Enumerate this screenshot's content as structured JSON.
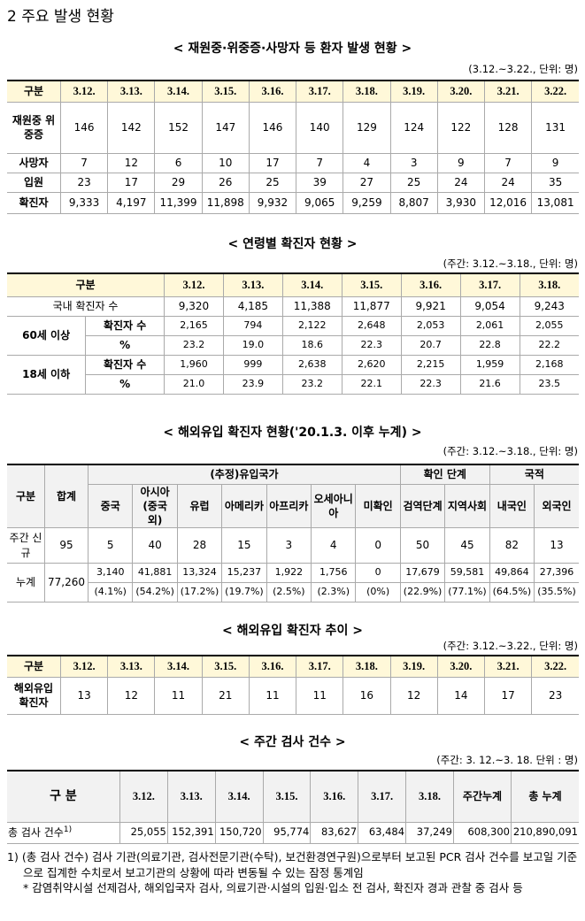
{
  "heading": "2  주요 발생 현황",
  "patient_status": {
    "title": "< 재원중·위중증·사망자 등 환자 발생 현황   >",
    "note": "(3.12.~3.22., 단위: 명)",
    "header": [
      "구분",
      "3.12.",
      "3.13.",
      "3.14.",
      "3.15.",
      "3.16.",
      "3.17.",
      "3.18.",
      "3.19.",
      "3.20.",
      "3.21.",
      "3.22."
    ],
    "rows": [
      [
        "재원중 위중증",
        "146",
        "142",
        "152",
        "147",
        "146",
        "140",
        "129",
        "124",
        "122",
        "128",
        "131"
      ],
      [
        "사망자",
        "7",
        "12",
        "6",
        "10",
        "17",
        "7",
        "4",
        "3",
        "9",
        "7",
        "9"
      ],
      [
        "입원",
        "23",
        "17",
        "29",
        "26",
        "25",
        "39",
        "27",
        "25",
        "24",
        "24",
        "35"
      ],
      [
        "확진자",
        "9,333",
        "4,197",
        "11,399",
        "11,898",
        "9,932",
        "9,065",
        "9,259",
        "8,807",
        "3,930",
        "12,016",
        "13,081"
      ]
    ]
  },
  "age_cases": {
    "title": "< 연령별 확진자 현황 >",
    "note": "(주간: 3.12.~3.18., 단위: 명)",
    "header": [
      "구분",
      "3.12.",
      "3.13.",
      "3.14.",
      "3.15.",
      "3.16.",
      "3.17.",
      "3.18."
    ],
    "total": {
      "label": "국내 확진자 수",
      "values": [
        "9,320",
        "4,185",
        "11,388",
        "11,877",
        "9,921",
        "9,054",
        "9,243"
      ]
    },
    "groups": [
      {
        "label": "60세 이상",
        "rows": [
          {
            "label": "확진자 수",
            "values": [
              "2,165",
              "794",
              "2,122",
              "2,648",
              "2,053",
              "2,061",
              "2,055"
            ]
          },
          {
            "label": "%",
            "values": [
              "23.2",
              "19.0",
              "18.6",
              "22.3",
              "20.7",
              "22.8",
              "22.2"
            ]
          }
        ]
      },
      {
        "label": "18세 이하",
        "rows": [
          {
            "label": "확진자 수",
            "values": [
              "1,960",
              "999",
              "2,638",
              "2,620",
              "2,215",
              "1,959",
              "2,168"
            ]
          },
          {
            "label": "%",
            "values": [
              "21.0",
              "23.9",
              "23.2",
              "22.1",
              "22.3",
              "21.6",
              "23.5"
            ]
          }
        ]
      }
    ]
  },
  "imported_cases": {
    "title": "< 해외유입 확진자 현황('20.1.3. 이후 누계) >",
    "note": "(주간: 3.12.~3.18., 단위: 명)",
    "header": [
      "구분",
      "합계"
    ],
    "groups": [
      "(추정)유입국가",
      "확인 단계",
      "국적"
    ],
    "subheader": [
      "중국",
      "아시아(중국 외)",
      "유럽",
      "아메리카",
      "아프리카",
      "오세아니아",
      "미확인",
      "검역단계",
      "지역사회",
      "내국인",
      "외국인"
    ],
    "weekly": {
      "label": "주간 신규",
      "total": "95",
      "values": [
        "5",
        "40",
        "28",
        "15",
        "3",
        "4",
        "0",
        "50",
        "45",
        "82",
        "13"
      ]
    },
    "cumulative": {
      "label": "누계",
      "total": "77,260",
      "values": [
        "3,140",
        "41,881",
        "13,324",
        "15,237",
        "1,922",
        "1,756",
        "0",
        "17,679",
        "59,581",
        "49,864",
        "27,396"
      ],
      "shares": [
        "(4.1%)",
        "(54.2%)",
        "(17.2%)",
        "(19.7%)",
        "(2.5%)",
        "(2.3%)",
        "(0%)",
        "(22.9%)",
        "(77.1%)",
        "(64.5%)",
        "(35.5%)"
      ]
    }
  },
  "imported_trend": {
    "title": "< 해외유입 확진자 추이 >",
    "note": "(주간: 3.12.~3.22., 단위: 명)",
    "header": [
      "구분",
      "3.12.",
      "3.13.",
      "3.14.",
      "3.15.",
      "3.16.",
      "3.17.",
      "3.18.",
      "3.19.",
      "3.20.",
      "3.21.",
      "3.22."
    ],
    "rows": [
      [
        "해외유입 확진자",
        "13",
        "12",
        "11",
        "21",
        "11",
        "11",
        "16",
        "12",
        "14",
        "17",
        "23"
      ]
    ]
  },
  "weekly_tests": {
    "title": "< 주간 검사 건수 >",
    "note": "(주간: 3. 12.~3. 18. 단위 : 명)",
    "header": [
      "구 분",
      "3.12.",
      "3.13.",
      "3.14.",
      "3.15.",
      "3.16.",
      "3.17.",
      "3.18.",
      "주간누계",
      "총 누계"
    ],
    "row": {
      "label": "총 검사 건수",
      "mark": "1)",
      "values": [
        "25,055",
        "152,391",
        "150,720",
        "95,774",
        "83,627",
        "63,484",
        "37,249",
        "608,300",
        "210,890,091"
      ]
    }
  },
  "footnotes": [
    {
      "mark": "1)",
      "text": "(총 검사 건수) 검사 기관(의료기관, 검사전문기관(수탁), 보건환경연구원)으로부터 보고된 PCR 검사 건수를 보고일 기준으로 집계한 수치로서 보고기관의 상황에 따라 변동될 수 있는 잠정 통계임"
    },
    {
      "mark": "*",
      "text": "감염취약시설 선제검사, 해외입국자 검사, 의료기관·시설의 입원·입소 전 검사, 확진자 경과 관찰 중 검사 등"
    }
  ]
}
